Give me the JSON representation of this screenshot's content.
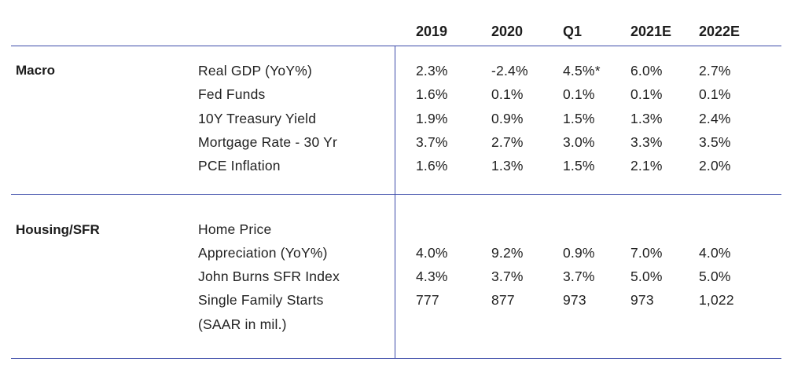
{
  "columns": [
    "2019",
    "2020",
    "Q1",
    "2021E",
    "2022E"
  ],
  "sections": [
    {
      "title": "Macro",
      "rows": [
        {
          "label": "Real GDP (YoY%)",
          "values": [
            "2.3%",
            "-2.4%",
            "4.5%*",
            "6.0%",
            "2.7%"
          ]
        },
        {
          "label": "Fed Funds",
          "values": [
            "1.6%",
            "0.1%",
            "0.1%",
            "0.1%",
            "0.1%"
          ]
        },
        {
          "label": "10Y Treasury Yield",
          "values": [
            "1.9%",
            "0.9%",
            "1.5%",
            "1.3%",
            "2.4%"
          ]
        },
        {
          "label": "Mortgage Rate - 30 Yr",
          "values": [
            "3.7%",
            "2.7%",
            "3.0%",
            "3.3%",
            "3.5%"
          ]
        },
        {
          "label": "PCE Inflation",
          "values": [
            "1.6%",
            "1.3%",
            "1.5%",
            "2.1%",
            "2.0%"
          ]
        }
      ]
    },
    {
      "title": "Housing/SFR",
      "rows": [
        {
          "label": "Home Price",
          "values": []
        },
        {
          "label": "Appreciation (YoY%)",
          "values": [
            "4.0%",
            "9.2%",
            "0.9%",
            "7.0%",
            "4.0%"
          ]
        },
        {
          "label": "John Burns SFR Index",
          "values": [
            "4.3%",
            "3.7%",
            "3.7%",
            "5.0%",
            "5.0%"
          ]
        },
        {
          "label": "Single Family Starts",
          "values": [
            "777",
            "877",
            "973",
            "973",
            "1,022"
          ]
        },
        {
          "label": "(SAAR in mil.)",
          "values": []
        }
      ]
    }
  ]
}
